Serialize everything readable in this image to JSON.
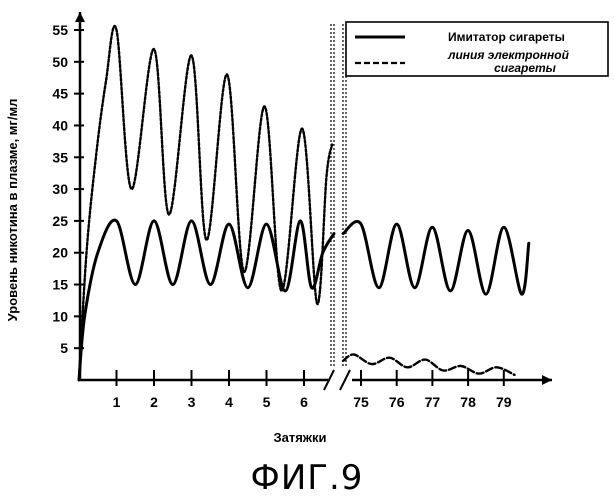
{
  "chart_data": {
    "type": "line",
    "ylabel": "Уровень никотина в плазме, мг/мл",
    "xlabel": "Затяжки",
    "ylim": [
      0,
      58
    ],
    "yticks": [
      5,
      10,
      15,
      20,
      25,
      30,
      35,
      40,
      45,
      50,
      55
    ],
    "xticks_left": [
      "1",
      "2",
      "3",
      "4",
      "5",
      "6"
    ],
    "xticks_right": [
      "75",
      "76",
      "77",
      "78",
      "79"
    ],
    "axis_break": true,
    "legend": {
      "placement": "top-right",
      "entries": [
        "Имитатор сигареты",
        "линия электронной сигареты"
      ]
    },
    "series": [
      {
        "name": "Имитатор сигареты",
        "style": "solid",
        "segments": [
          {
            "x": [
              0,
              0.15,
              0.5,
              1.0,
              1.5,
              2.0,
              2.5,
              3.0,
              3.5,
              4.0,
              4.5,
              5.0,
              5.5,
              5.9,
              6.2,
              6.5,
              6.8
            ],
            "y": [
              0,
              10,
              20,
              25,
              15,
              25,
              15,
              25,
              15,
              24.5,
              14.5,
              24.5,
              14,
              25,
              14.5,
              20,
              23
            ]
          },
          {
            "x": [
              74.5,
              75,
              75.5,
              76,
              76.5,
              77,
              77.5,
              78,
              78.5,
              79,
              79.5,
              79.7
            ],
            "y": [
              23,
              24.5,
              14.5,
              24.5,
              14.5,
              24,
              14,
              23.5,
              13.5,
              24,
              13.5,
              21.5
            ]
          }
        ]
      },
      {
        "name": "линия электронной сигареты",
        "style": "dashed",
        "segments": [
          {
            "x": [
              0,
              0.2,
              0.45,
              0.72,
              1.0,
              1.4,
              2.0,
              2.4,
              3.0,
              3.4,
              3.95,
              4.4,
              4.95,
              5.4,
              5.95,
              6.35,
              6.6,
              6.75
            ],
            "y": [
              0,
              20,
              35,
              47,
              55,
              30,
              52,
              26,
              51,
              22,
              48,
              17,
              43,
              14,
              39.5,
              12,
              32,
              37
            ]
          },
          {
            "x": [
              74.5,
              74.8,
              75.3,
              75.8,
              76.3,
              76.8,
              77.3,
              77.8,
              78.3,
              78.8,
              79.3
            ],
            "y": [
              3,
              4,
              2.5,
              3.5,
              2,
              3.2,
              1.5,
              2.2,
              1,
              2,
              0.8
            ]
          }
        ]
      }
    ]
  },
  "figure": {
    "caption": "ФИГ.9"
  }
}
